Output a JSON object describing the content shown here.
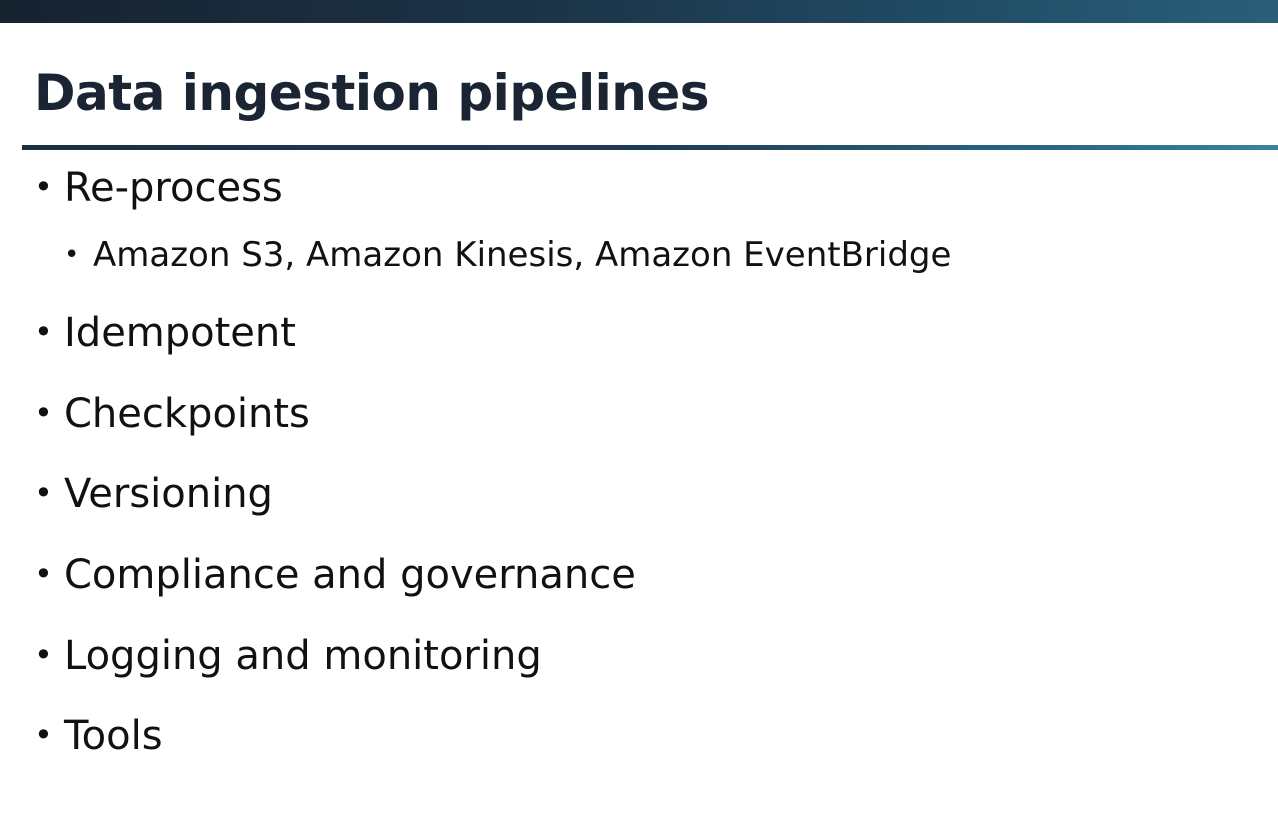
{
  "slide": {
    "title": "Data ingestion pipelines",
    "bullets": [
      {
        "text": "Re-process",
        "level": 1
      },
      {
        "text": "Amazon S3, Amazon Kinesis, Amazon EventBridge",
        "level": 2
      },
      {
        "text": "Idempotent",
        "level": 1
      },
      {
        "text": "Checkpoints",
        "level": 1
      },
      {
        "text": "Versioning",
        "level": 1
      },
      {
        "text": "Compliance and governance",
        "level": 1
      },
      {
        "text": "Logging and monitoring",
        "level": 1
      },
      {
        "text": "Tools",
        "level": 1
      }
    ],
    "bullet_glyph": "•",
    "colors": {
      "title": "#1a2433",
      "text": "#111111",
      "header_bar_dark": "#17222f",
      "header_bar_light": "#2a5f78",
      "rule_dark": "#1c2d44",
      "rule_light": "#37859c"
    }
  }
}
